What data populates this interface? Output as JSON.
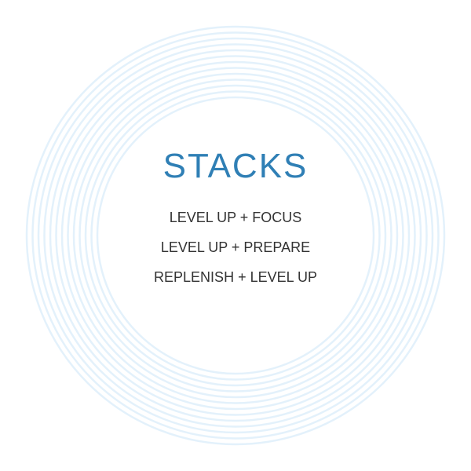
{
  "title": "STACKS",
  "items": [
    "LEVEL UP + FOCUS",
    "LEVEL UP + PREPARE",
    "REPLENISH + LEVEL UP"
  ],
  "colors": {
    "title": "#2f7fb5",
    "text": "#333333",
    "rings": "#e3f1fb",
    "background": "#ffffff"
  }
}
